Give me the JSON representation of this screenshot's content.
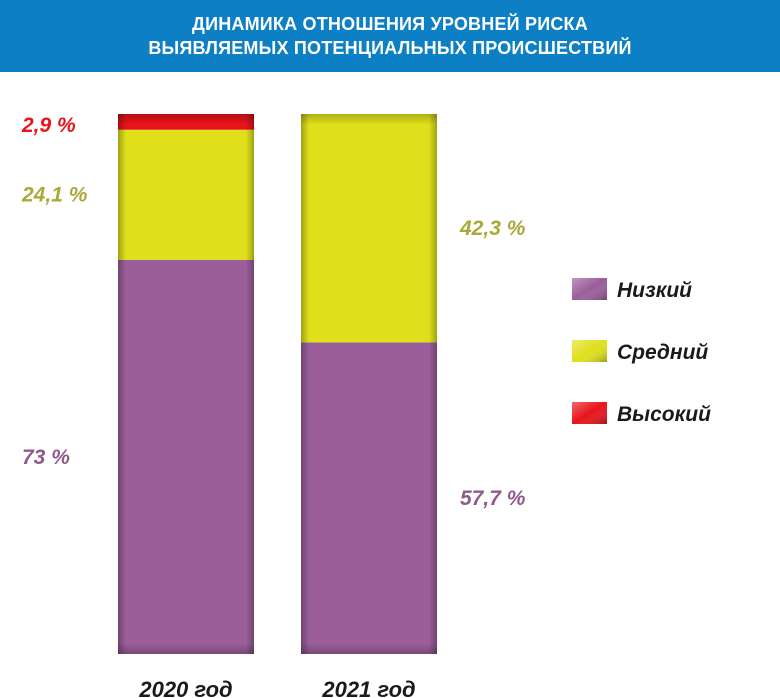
{
  "header": {
    "title_line1": "ДИНАМИКА ОТНОШЕНИЯ УРОВНЕЙ РИСКА",
    "title_line2": "ВЫЯВЛЯЕМЫХ ПОТЕНЦИАЛЬНЫХ ПРОИСШЕСТВИЙ"
  },
  "chart_data": {
    "type": "bar",
    "stacked": true,
    "title": "ДИНАМИКА ОТНОШЕНИЯ УРОВНЕЙ РИСКА ВЫЯВЛЯЕМЫХ ПОТЕНЦИАЛЬНЫХ ПРОИСШЕСТВИЙ",
    "categories": [
      "2020 год",
      "2021 год"
    ],
    "series": [
      {
        "name": "Низкий",
        "values": [
          73,
          57.7
        ],
        "labels": [
          "73 %",
          "57,7 %"
        ],
        "color": "#9b5e9b"
      },
      {
        "name": "Средний",
        "values": [
          24.1,
          42.3
        ],
        "labels": [
          "24,1 %",
          "42,3 %"
        ],
        "color": "#dfe01b"
      },
      {
        "name": "Высокий",
        "values": [
          2.9,
          0
        ],
        "labels": [
          "2,9 %",
          ""
        ],
        "color": "#e8141a"
      }
    ],
    "label_colors": {
      "Низкий": "#8e5a8e",
      "Средний": "#a9a838",
      "Высокий": "#e8141a"
    },
    "ylim": [
      0,
      100
    ],
    "legend_position": "right",
    "grid": false
  }
}
